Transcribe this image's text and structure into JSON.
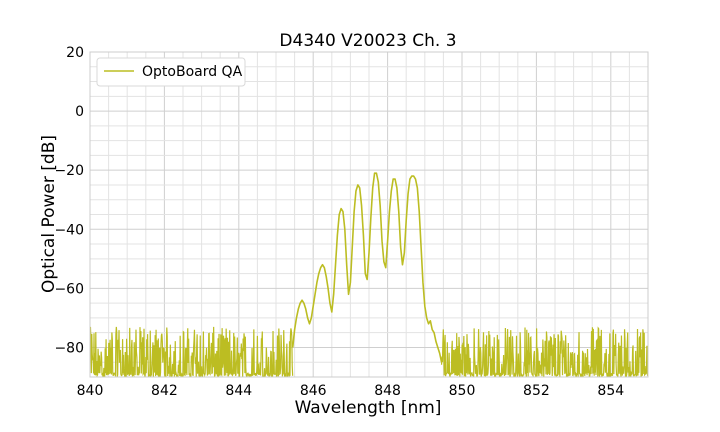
{
  "chart_data": {
    "type": "line",
    "title": "D4340 V20023 Ch. 3",
    "xlabel": "Wavelength [nm]",
    "ylabel": "Optical Power [dB]",
    "xlim": [
      840,
      855
    ],
    "ylim": [
      -90,
      20
    ],
    "xticks": [
      840,
      842,
      844,
      846,
      848,
      850,
      852,
      854
    ],
    "yticks": [
      20,
      0,
      -20,
      -40,
      -60,
      -80
    ],
    "x_minor_step": 0.5,
    "y_minor_step": 5,
    "grid": true,
    "legend_position": "top-left",
    "noise_floor_range": [
      -90,
      -73
    ],
    "series": [
      {
        "name": "OptoBoard QA",
        "color": "#bcbd22",
        "x": [
          845.45,
          845.5,
          845.55,
          845.6,
          845.65,
          845.7,
          845.75,
          845.8,
          845.85,
          845.9,
          845.95,
          846.0,
          846.05,
          846.1,
          846.15,
          846.2,
          846.25,
          846.3,
          846.35,
          846.4,
          846.45,
          846.5,
          846.55,
          846.6,
          846.65,
          846.7,
          846.75,
          846.8,
          846.85,
          846.9,
          846.95,
          847.0,
          847.05,
          847.1,
          847.15,
          847.2,
          847.25,
          847.3,
          847.35,
          847.4,
          847.45,
          847.5,
          847.55,
          847.6,
          847.65,
          847.7,
          847.75,
          847.8,
          847.85,
          847.9,
          847.95,
          848.0,
          848.05,
          848.1,
          848.15,
          848.2,
          848.25,
          848.3,
          848.35,
          848.4,
          848.45,
          848.5,
          848.55,
          848.6,
          848.65,
          848.7,
          848.75,
          848.8,
          848.85,
          848.9,
          848.95,
          849.0,
          849.05,
          849.1,
          849.15,
          849.2,
          849.25,
          849.3,
          849.35,
          849.4,
          849.45
        ],
        "y": [
          -80,
          -74,
          -70,
          -67,
          -65,
          -64,
          -65,
          -67,
          -70,
          -72,
          -70,
          -66,
          -62,
          -58,
          -55,
          -53,
          -52,
          -53,
          -56,
          -60,
          -65,
          -68,
          -62,
          -52,
          -42,
          -35,
          -33,
          -34,
          -40,
          -52,
          -62,
          -58,
          -46,
          -34,
          -27,
          -25,
          -26,
          -32,
          -42,
          -55,
          -57,
          -48,
          -36,
          -26,
          -21,
          -21,
          -24,
          -32,
          -44,
          -51,
          -53,
          -44,
          -34,
          -27,
          -23,
          -23,
          -26,
          -34,
          -46,
          -52,
          -48,
          -37,
          -28,
          -23,
          -22,
          -22,
          -23,
          -26,
          -34,
          -46,
          -58,
          -66,
          -70,
          -72,
          -71,
          -74,
          -75,
          -78,
          -80,
          -82,
          -85
        ]
      }
    ]
  }
}
